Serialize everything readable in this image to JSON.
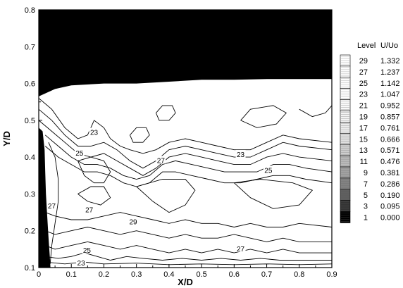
{
  "chart_data": {
    "type": "contour",
    "xlabel": "X/D",
    "ylabel": "Y/D",
    "xlim": [
      0,
      0.9
    ],
    "ylim": [
      0.1,
      0.8
    ],
    "xticks": [
      "0",
      "0.1",
      "0.2",
      "0.3",
      "0.4",
      "0.5",
      "0.6",
      "0.7",
      "0.8",
      "0.9"
    ],
    "yticks": [
      "0.1",
      "0.2",
      "0.3",
      "0.4",
      "0.5",
      "0.6",
      "0.7",
      "0.8"
    ],
    "legend": {
      "position": "right",
      "header_level": "Level",
      "header_value": "U/Uo",
      "entries": [
        {
          "level": "29",
          "value": "1.332"
        },
        {
          "level": "27",
          "value": "1.237"
        },
        {
          "level": "25",
          "value": "1.142"
        },
        {
          "level": "23",
          "value": "1.047"
        },
        {
          "level": "21",
          "value": "0.952"
        },
        {
          "level": "19",
          "value": "0.857"
        },
        {
          "level": "17",
          "value": "0.761"
        },
        {
          "level": "15",
          "value": "0.666"
        },
        {
          "level": "13",
          "value": "0.571"
        },
        {
          "level": "11",
          "value": "0.476"
        },
        {
          "level": "9",
          "value": "0.381"
        },
        {
          "level": "7",
          "value": "0.286"
        },
        {
          "level": "5",
          "value": "0.190"
        },
        {
          "level": "3",
          "value": "0.095"
        },
        {
          "level": "1",
          "value": "0.000"
        }
      ]
    },
    "contour_labels": [
      {
        "text": "23",
        "x": 0.17,
        "y": 0.468
      },
      {
        "text": "25",
        "x": 0.125,
        "y": 0.412
      },
      {
        "text": "27",
        "x": 0.375,
        "y": 0.392
      },
      {
        "text": "23",
        "x": 0.62,
        "y": 0.408
      },
      {
        "text": "25",
        "x": 0.705,
        "y": 0.365
      },
      {
        "text": "27",
        "x": 0.04,
        "y": 0.268
      },
      {
        "text": "27",
        "x": 0.155,
        "y": 0.258
      },
      {
        "text": "29",
        "x": 0.29,
        "y": 0.225
      },
      {
        "text": "25",
        "x": 0.148,
        "y": 0.148
      },
      {
        "text": "27",
        "x": 0.62,
        "y": 0.152
      },
      {
        "text": "23",
        "x": 0.13,
        "y": 0.113
      }
    ],
    "contour_lines": [
      [
        [
          0.0,
          0.56
        ],
        [
          0.04,
          0.53
        ],
        [
          0.08,
          0.48
        ],
        [
          0.12,
          0.45
        ],
        [
          0.15,
          0.46
        ],
        [
          0.17,
          0.5
        ],
        [
          0.2,
          0.48
        ],
        [
          0.22,
          0.45
        ],
        [
          0.25,
          0.43
        ],
        [
          0.28,
          0.42
        ],
        [
          0.32,
          0.41
        ],
        [
          0.36,
          0.42
        ],
        [
          0.4,
          0.44
        ],
        [
          0.45,
          0.45
        ],
        [
          0.5,
          0.44
        ],
        [
          0.55,
          0.43
        ],
        [
          0.6,
          0.42
        ],
        [
          0.65,
          0.42
        ],
        [
          0.7,
          0.44
        ],
        [
          0.75,
          0.46
        ],
        [
          0.8,
          0.45
        ],
        [
          0.9,
          0.44
        ]
      ],
      [
        [
          0.0,
          0.53
        ],
        [
          0.04,
          0.5
        ],
        [
          0.08,
          0.46
        ],
        [
          0.12,
          0.43
        ],
        [
          0.16,
          0.43
        ],
        [
          0.2,
          0.44
        ],
        [
          0.24,
          0.42
        ],
        [
          0.28,
          0.39
        ],
        [
          0.32,
          0.37
        ],
        [
          0.36,
          0.39
        ],
        [
          0.4,
          0.42
        ],
        [
          0.45,
          0.43
        ],
        [
          0.5,
          0.42
        ],
        [
          0.55,
          0.41
        ],
        [
          0.6,
          0.4
        ],
        [
          0.65,
          0.4
        ],
        [
          0.7,
          0.42
        ],
        [
          0.75,
          0.44
        ],
        [
          0.8,
          0.43
        ],
        [
          0.9,
          0.42
        ]
      ],
      [
        [
          0.0,
          0.5
        ],
        [
          0.04,
          0.47
        ],
        [
          0.08,
          0.44
        ],
        [
          0.12,
          0.41
        ],
        [
          0.16,
          0.4
        ],
        [
          0.2,
          0.41
        ],
        [
          0.24,
          0.39
        ],
        [
          0.28,
          0.37
        ],
        [
          0.32,
          0.35
        ],
        [
          0.36,
          0.37
        ],
        [
          0.4,
          0.4
        ],
        [
          0.45,
          0.41
        ],
        [
          0.5,
          0.4
        ],
        [
          0.55,
          0.39
        ],
        [
          0.6,
          0.38
        ],
        [
          0.65,
          0.38
        ],
        [
          0.7,
          0.4
        ],
        [
          0.75,
          0.41
        ],
        [
          0.8,
          0.4
        ],
        [
          0.9,
          0.39
        ]
      ],
      [
        [
          0.02,
          0.46
        ],
        [
          0.06,
          0.43
        ],
        [
          0.1,
          0.4
        ],
        [
          0.14,
          0.38
        ],
        [
          0.18,
          0.38
        ],
        [
          0.22,
          0.37
        ],
        [
          0.26,
          0.35
        ],
        [
          0.3,
          0.34
        ],
        [
          0.34,
          0.35
        ],
        [
          0.38,
          0.38
        ],
        [
          0.42,
          0.39
        ],
        [
          0.47,
          0.38
        ],
        [
          0.52,
          0.37
        ],
        [
          0.57,
          0.36
        ],
        [
          0.62,
          0.36
        ],
        [
          0.67,
          0.36
        ],
        [
          0.72,
          0.38
        ],
        [
          0.77,
          0.38
        ],
        [
          0.82,
          0.37
        ],
        [
          0.9,
          0.36
        ]
      ],
      [
        [
          0.02,
          0.43
        ],
        [
          0.06,
          0.4
        ],
        [
          0.1,
          0.38
        ],
        [
          0.14,
          0.36
        ],
        [
          0.18,
          0.36
        ],
        [
          0.22,
          0.35
        ],
        [
          0.26,
          0.33
        ],
        [
          0.3,
          0.32
        ],
        [
          0.34,
          0.33
        ],
        [
          0.38,
          0.36
        ],
        [
          0.42,
          0.36
        ],
        [
          0.47,
          0.35
        ],
        [
          0.52,
          0.34
        ],
        [
          0.57,
          0.33
        ],
        [
          0.62,
          0.33
        ],
        [
          0.67,
          0.34
        ],
        [
          0.72,
          0.35
        ],
        [
          0.77,
          0.35
        ],
        [
          0.82,
          0.34
        ],
        [
          0.9,
          0.33
        ]
      ],
      [
        [
          0.02,
          0.25
        ],
        [
          0.05,
          0.24
        ],
        [
          0.1,
          0.23
        ],
        [
          0.15,
          0.23
        ],
        [
          0.2,
          0.24
        ],
        [
          0.25,
          0.25
        ],
        [
          0.3,
          0.24
        ],
        [
          0.35,
          0.23
        ],
        [
          0.4,
          0.22
        ],
        [
          0.45,
          0.23
        ],
        [
          0.5,
          0.22
        ],
        [
          0.55,
          0.22
        ],
        [
          0.6,
          0.21
        ],
        [
          0.65,
          0.22
        ],
        [
          0.7,
          0.21
        ],
        [
          0.75,
          0.21
        ],
        [
          0.8,
          0.22
        ],
        [
          0.9,
          0.21
        ]
      ],
      [
        [
          0.02,
          0.2
        ],
        [
          0.05,
          0.19
        ],
        [
          0.1,
          0.2
        ],
        [
          0.15,
          0.21
        ],
        [
          0.2,
          0.2
        ],
        [
          0.25,
          0.19
        ],
        [
          0.3,
          0.2
        ],
        [
          0.35,
          0.19
        ],
        [
          0.4,
          0.18
        ],
        [
          0.45,
          0.19
        ],
        [
          0.5,
          0.18
        ],
        [
          0.55,
          0.18
        ],
        [
          0.6,
          0.19
        ],
        [
          0.65,
          0.18
        ],
        [
          0.7,
          0.17
        ],
        [
          0.75,
          0.18
        ],
        [
          0.8,
          0.17
        ],
        [
          0.9,
          0.17
        ]
      ],
      [
        [
          0.02,
          0.16
        ],
        [
          0.05,
          0.15
        ],
        [
          0.1,
          0.16
        ],
        [
          0.15,
          0.17
        ],
        [
          0.2,
          0.16
        ],
        [
          0.25,
          0.15
        ],
        [
          0.3,
          0.16
        ],
        [
          0.35,
          0.15
        ],
        [
          0.4,
          0.14
        ],
        [
          0.45,
          0.15
        ],
        [
          0.5,
          0.14
        ],
        [
          0.55,
          0.15
        ],
        [
          0.6,
          0.14
        ],
        [
          0.65,
          0.15
        ],
        [
          0.7,
          0.14
        ],
        [
          0.75,
          0.15
        ],
        [
          0.8,
          0.14
        ],
        [
          0.9,
          0.14
        ]
      ],
      [
        [
          0.02,
          0.13
        ],
        [
          0.06,
          0.125
        ],
        [
          0.1,
          0.13
        ],
        [
          0.14,
          0.14
        ],
        [
          0.18,
          0.13
        ],
        [
          0.22,
          0.12
        ],
        [
          0.27,
          0.13
        ],
        [
          0.32,
          0.125
        ],
        [
          0.38,
          0.12
        ],
        [
          0.44,
          0.125
        ],
        [
          0.5,
          0.12
        ],
        [
          0.56,
          0.125
        ],
        [
          0.62,
          0.12
        ],
        [
          0.68,
          0.125
        ],
        [
          0.74,
          0.12
        ],
        [
          0.8,
          0.12
        ],
        [
          0.9,
          0.12
        ]
      ],
      [
        [
          0.02,
          0.115
        ],
        [
          0.08,
          0.11
        ],
        [
          0.14,
          0.115
        ],
        [
          0.2,
          0.11
        ],
        [
          0.3,
          0.112
        ],
        [
          0.4,
          0.108
        ],
        [
          0.5,
          0.11
        ],
        [
          0.6,
          0.108
        ],
        [
          0.7,
          0.11
        ],
        [
          0.8,
          0.108
        ],
        [
          0.9,
          0.11
        ]
      ],
      [
        [
          0.03,
          0.44
        ],
        [
          0.05,
          0.4
        ],
        [
          0.06,
          0.34
        ],
        [
          0.06,
          0.28
        ],
        [
          0.05,
          0.22
        ],
        [
          0.04,
          0.16
        ],
        [
          0.035,
          0.11
        ]
      ],
      [
        [
          0.12,
          0.39
        ],
        [
          0.14,
          0.35
        ],
        [
          0.17,
          0.33
        ],
        [
          0.2,
          0.33
        ],
        [
          0.22,
          0.36
        ],
        [
          0.2,
          0.39
        ],
        [
          0.16,
          0.4
        ],
        [
          0.12,
          0.39
        ]
      ],
      [
        [
          0.12,
          0.3
        ],
        [
          0.15,
          0.28
        ],
        [
          0.19,
          0.27
        ],
        [
          0.22,
          0.29
        ],
        [
          0.2,
          0.32
        ],
        [
          0.16,
          0.32
        ],
        [
          0.12,
          0.3
        ]
      ],
      [
        [
          0.28,
          0.46
        ],
        [
          0.3,
          0.48
        ],
        [
          0.33,
          0.48
        ],
        [
          0.34,
          0.46
        ],
        [
          0.32,
          0.44
        ],
        [
          0.29,
          0.44
        ],
        [
          0.28,
          0.46
        ]
      ],
      [
        [
          0.36,
          0.52
        ],
        [
          0.38,
          0.54
        ],
        [
          0.41,
          0.54
        ],
        [
          0.42,
          0.52
        ],
        [
          0.4,
          0.5
        ],
        [
          0.37,
          0.5
        ],
        [
          0.36,
          0.52
        ]
      ],
      [
        [
          0.3,
          0.32
        ],
        [
          0.35,
          0.28
        ],
        [
          0.4,
          0.25
        ],
        [
          0.45,
          0.27
        ],
        [
          0.48,
          0.31
        ],
        [
          0.45,
          0.34
        ],
        [
          0.38,
          0.34
        ],
        [
          0.3,
          0.32
        ]
      ],
      [
        [
          0.6,
          0.33
        ],
        [
          0.65,
          0.29
        ],
        [
          0.72,
          0.26
        ],
        [
          0.8,
          0.27
        ],
        [
          0.84,
          0.31
        ],
        [
          0.78,
          0.33
        ],
        [
          0.68,
          0.34
        ],
        [
          0.6,
          0.33
        ]
      ],
      [
        [
          0.62,
          0.5
        ],
        [
          0.67,
          0.48
        ],
        [
          0.73,
          0.49
        ],
        [
          0.76,
          0.52
        ],
        [
          0.72,
          0.54
        ],
        [
          0.65,
          0.53
        ],
        [
          0.62,
          0.5
        ]
      ],
      [
        [
          0.8,
          0.53
        ],
        [
          0.84,
          0.51
        ],
        [
          0.88,
          0.52
        ],
        [
          0.9,
          0.54
        ]
      ]
    ]
  }
}
